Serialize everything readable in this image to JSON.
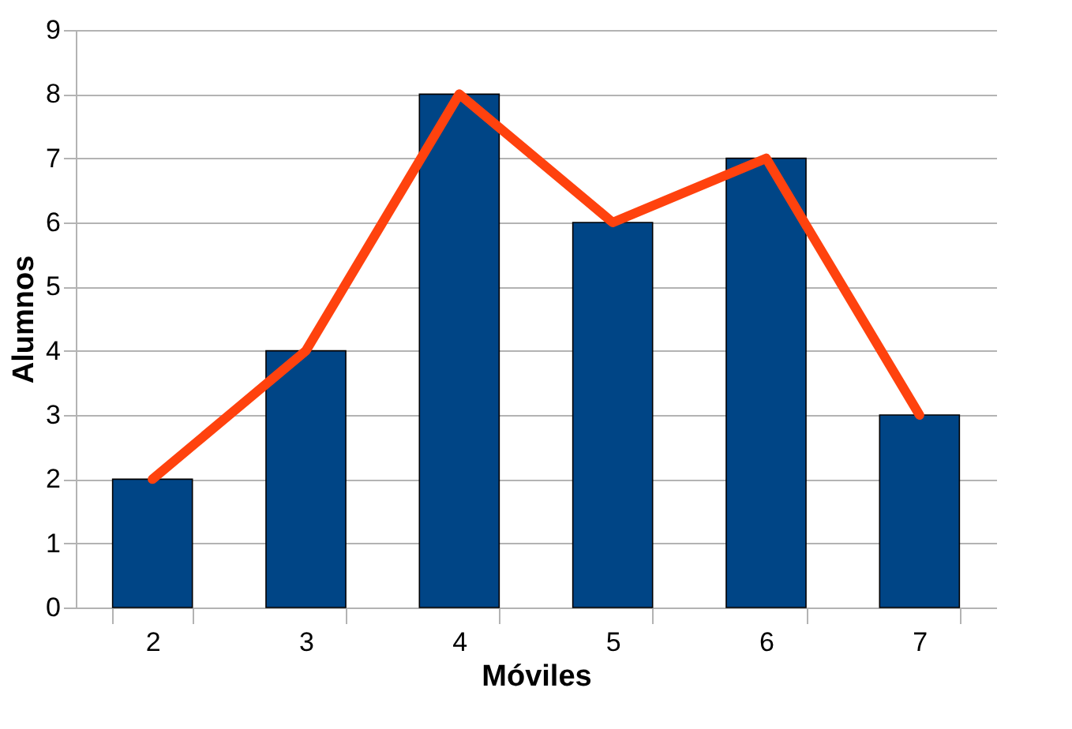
{
  "chart_data": {
    "type": "bar",
    "xlabel": "Móviles",
    "ylabel": "Alumnos",
    "categories": [
      "2",
      "3",
      "4",
      "5",
      "6",
      "7"
    ],
    "series": [
      {
        "color": "#004586",
        "values": [
          2,
          4,
          8,
          6,
          7,
          3
        ]
      },
      {
        "type": "line",
        "color": "#ff420e",
        "values": [
          2,
          4,
          8,
          6,
          7,
          3
        ]
      }
    ],
    "ylim": [
      0,
      9
    ],
    "yticks": [
      0,
      1,
      2,
      3,
      4,
      5,
      6,
      7,
      8,
      9
    ],
    "grid": "y",
    "marker": "none",
    "line_style": "solid"
  }
}
